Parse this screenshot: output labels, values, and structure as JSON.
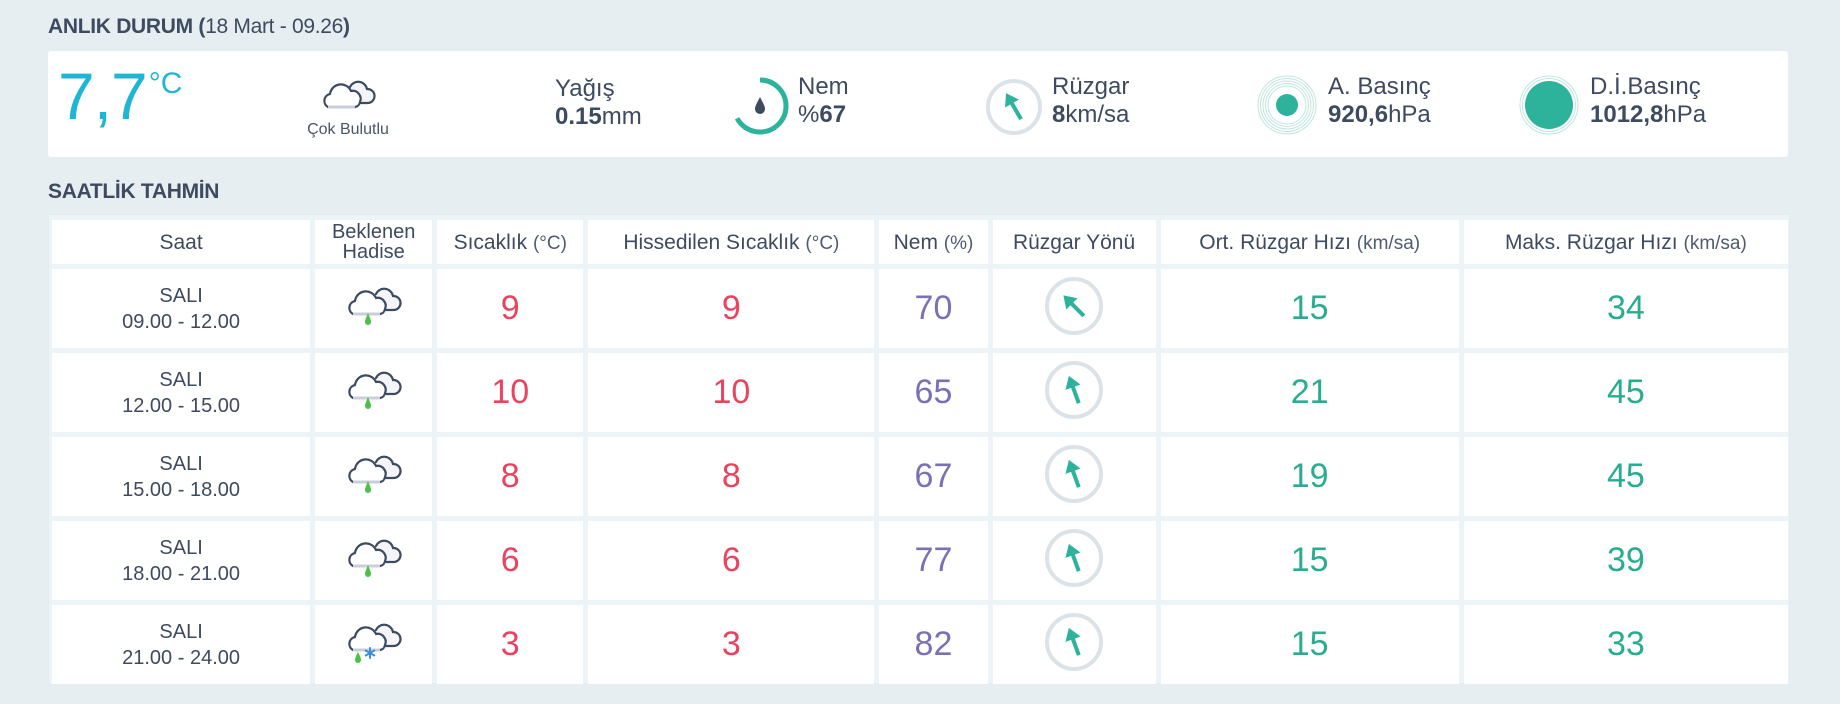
{
  "current": {
    "title": "ANLIK DURUM",
    "date_time": "18 Mart - 09.26",
    "temperature": "7,7",
    "temperature_unit": "°C",
    "condition": "Çok Bulutlu",
    "condition_icon": "cloudy-icon",
    "precipitation": {
      "label": "Yağış",
      "value": "0.15",
      "unit": "mm"
    },
    "humidity": {
      "label": "Nem",
      "prefix": "%",
      "value": "67",
      "percent": 67,
      "icon": "humidity-ring-icon"
    },
    "wind": {
      "label": "Rüzgar",
      "value": "8",
      "unit": "km/sa",
      "direction_deg": 150,
      "icon": "wind-direction-icon"
    },
    "pressure": {
      "label": "A. Basınç",
      "value": "920,6",
      "unit": "hPa",
      "icon": "pressure-icon"
    },
    "sea_level_pressure": {
      "label": "D.İ.Basınç",
      "value": "1012,8",
      "unit": "hPa",
      "icon": "sea-pressure-icon"
    }
  },
  "hourly": {
    "title": "SAATLİK TAHMİN",
    "columns": [
      {
        "label": "Saat",
        "unit": ""
      },
      {
        "label": "Beklenen Hadise",
        "unit": ""
      },
      {
        "label": "Sıcaklık",
        "unit": "(°C)"
      },
      {
        "label": "Hissedilen Sıcaklık",
        "unit": "(°C)"
      },
      {
        "label": "Nem",
        "unit": "(%)"
      },
      {
        "label": "Rüzgar Yönü",
        "unit": ""
      },
      {
        "label": "Ort. Rüzgar Hızı",
        "unit": "(km/sa)"
      },
      {
        "label": "Maks. Rüzgar Hızı",
        "unit": "(km/sa)"
      }
    ],
    "rows": [
      {
        "day": "SALI",
        "range": "09.00 - 12.00",
        "icon": "rain-icon",
        "temp": "9",
        "feels": "9",
        "humidity": "70",
        "wind_dir_deg": 135,
        "wind_avg": "15",
        "wind_max": "34"
      },
      {
        "day": "SALI",
        "range": "12.00 - 15.00",
        "icon": "rain-icon",
        "temp": "10",
        "feels": "10",
        "humidity": "65",
        "wind_dir_deg": 160,
        "wind_avg": "21",
        "wind_max": "45"
      },
      {
        "day": "SALI",
        "range": "15.00 - 18.00",
        "icon": "rain-icon",
        "temp": "8",
        "feels": "8",
        "humidity": "67",
        "wind_dir_deg": 160,
        "wind_avg": "19",
        "wind_max": "45"
      },
      {
        "day": "SALI",
        "range": "18.00 - 21.00",
        "icon": "rain-icon",
        "temp": "6",
        "feels": "6",
        "humidity": "77",
        "wind_dir_deg": 160,
        "wind_avg": "15",
        "wind_max": "39"
      },
      {
        "day": "SALI",
        "range": "21.00 - 24.00",
        "icon": "sleet-icon",
        "temp": "3",
        "feels": "3",
        "humidity": "82",
        "wind_dir_deg": 160,
        "wind_avg": "15",
        "wind_max": "33"
      }
    ]
  },
  "colors": {
    "temperature_current": "#1fb5d4",
    "temperature": "#e8445f",
    "humidity": "#7d6fb5",
    "wind": "#2bab90",
    "accent": "#2db39b",
    "text": "#3d4a5f",
    "background": "#e6eef2"
  }
}
